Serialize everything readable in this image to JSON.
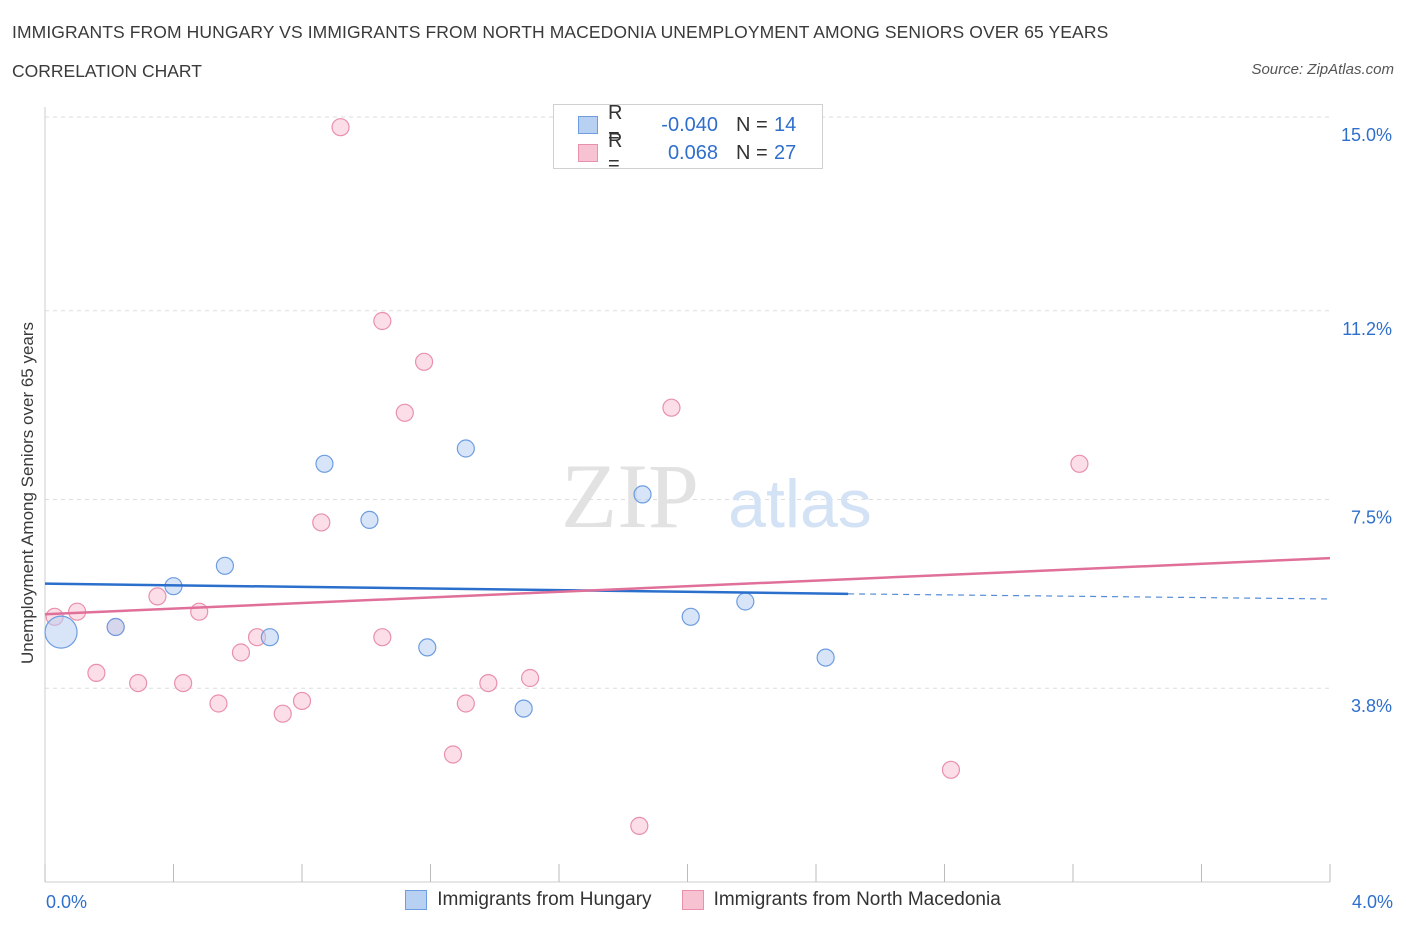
{
  "header": {
    "title": "IMMIGRANTS FROM HUNGARY VS IMMIGRANTS FROM NORTH MACEDONIA UNEMPLOYMENT AMONG SENIORS OVER 65 YEARS",
    "subtitle": "CORRELATION CHART",
    "source": "Source: ZipAtlas.com"
  },
  "watermark": {
    "zip": "ZIP",
    "atlas": "atlas"
  },
  "legend": {
    "hungary": {
      "r_label": "R =",
      "r_value": "-0.040",
      "n_label": "N =",
      "n_value": "14"
    },
    "macedonia": {
      "r_label": "R =",
      "r_value": "0.068",
      "n_label": "N =",
      "n_value": "27"
    }
  },
  "colors": {
    "hungary_fill": "#b8d0f2",
    "hungary_stroke": "#6d9de0",
    "hungary_line": "#2b6fcc",
    "macedonia_fill": "#f7c3d3",
    "macedonia_stroke": "#e990ad",
    "macedonia_line": "#e07099",
    "tick_text": "#2f6fcc",
    "grid": "#dddddd"
  },
  "chart_data": {
    "type": "scatter",
    "title": "IMMIGRANTS FROM HUNGARY VS IMMIGRANTS FROM NORTH MACEDONIA UNEMPLOYMENT AMONG SENIORS OVER 65 YEARS",
    "xlabel": "",
    "ylabel": "Unemployment Among Seniors over 65 years",
    "xlim": [
      0.0,
      4.0
    ],
    "ylim": [
      0.0,
      15.0
    ],
    "x_tick_labels": [
      "0.0%",
      "4.0%"
    ],
    "y_ticks": [
      3.8,
      7.5,
      11.2,
      15.0
    ],
    "y_tick_labels": [
      "3.8%",
      "7.5%",
      "11.2%",
      "15.0%"
    ],
    "grid": true,
    "legend_position": "top-center",
    "series": [
      {
        "name": "Immigrants from Hungary",
        "color": "#6d9de0",
        "points": [
          {
            "x": 0.05,
            "y": 4.9,
            "size": 3
          },
          {
            "x": 0.22,
            "y": 5.0,
            "size": 1
          },
          {
            "x": 0.4,
            "y": 5.8,
            "size": 1
          },
          {
            "x": 0.56,
            "y": 6.2,
            "size": 1
          },
          {
            "x": 0.7,
            "y": 4.8,
            "size": 1
          },
          {
            "x": 0.87,
            "y": 8.2,
            "size": 1
          },
          {
            "x": 1.01,
            "y": 7.1,
            "size": 1
          },
          {
            "x": 1.19,
            "y": 4.6,
            "size": 1
          },
          {
            "x": 1.31,
            "y": 8.5,
            "size": 1
          },
          {
            "x": 1.49,
            "y": 3.4,
            "size": 1
          },
          {
            "x": 1.86,
            "y": 7.6,
            "size": 1
          },
          {
            "x": 2.01,
            "y": 5.2,
            "size": 1
          },
          {
            "x": 2.18,
            "y": 5.5,
            "size": 1
          },
          {
            "x": 2.43,
            "y": 4.4,
            "size": 1
          }
        ],
        "trend": {
          "x0": 0.0,
          "y0": 5.85,
          "x1": 2.5,
          "y1": 5.65,
          "dashed_to_x": 4.0,
          "dashed_to_y": 5.55
        }
      },
      {
        "name": "Immigrants from North Macedonia",
        "color": "#e990ad",
        "points": [
          {
            "x": 0.03,
            "y": 5.2,
            "size": 1
          },
          {
            "x": 0.1,
            "y": 5.3,
            "size": 1
          },
          {
            "x": 0.16,
            "y": 4.1,
            "size": 1
          },
          {
            "x": 0.22,
            "y": 5.0,
            "size": 1
          },
          {
            "x": 0.29,
            "y": 3.9,
            "size": 1
          },
          {
            "x": 0.35,
            "y": 5.6,
            "size": 1
          },
          {
            "x": 0.43,
            "y": 3.9,
            "size": 1
          },
          {
            "x": 0.48,
            "y": 5.3,
            "size": 1
          },
          {
            "x": 0.54,
            "y": 3.5,
            "size": 1
          },
          {
            "x": 0.61,
            "y": 4.5,
            "size": 1
          },
          {
            "x": 0.66,
            "y": 4.8,
            "size": 1
          },
          {
            "x": 0.74,
            "y": 3.3,
            "size": 1
          },
          {
            "x": 0.8,
            "y": 3.55,
            "size": 1
          },
          {
            "x": 0.86,
            "y": 7.05,
            "size": 1
          },
          {
            "x": 0.92,
            "y": 14.8,
            "size": 1
          },
          {
            "x": 1.05,
            "y": 11.0,
            "size": 1
          },
          {
            "x": 1.05,
            "y": 4.8,
            "size": 1
          },
          {
            "x": 1.12,
            "y": 9.2,
            "size": 1
          },
          {
            "x": 1.18,
            "y": 10.2,
            "size": 1
          },
          {
            "x": 1.27,
            "y": 2.5,
            "size": 1
          },
          {
            "x": 1.31,
            "y": 3.5,
            "size": 1
          },
          {
            "x": 1.38,
            "y": 3.9,
            "size": 1
          },
          {
            "x": 1.51,
            "y": 4.0,
            "size": 1
          },
          {
            "x": 1.85,
            "y": 1.1,
            "size": 1
          },
          {
            "x": 1.95,
            "y": 9.3,
            "size": 1
          },
          {
            "x": 2.82,
            "y": 2.2,
            "size": 1
          },
          {
            "x": 3.22,
            "y": 8.2,
            "size": 1
          }
        ],
        "trend": {
          "x0": 0.0,
          "y0": 5.25,
          "x1": 4.0,
          "y1": 6.35
        }
      }
    ]
  }
}
